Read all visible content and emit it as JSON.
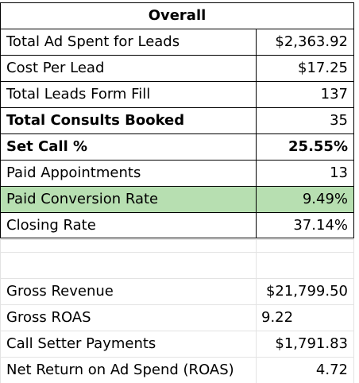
{
  "header": {
    "title": "Overall"
  },
  "rows": [
    {
      "label": "Total Ad Spent for Leads",
      "value": "$2,363.92"
    },
    {
      "label": "Cost Per Lead",
      "value": "$17.25"
    },
    {
      "label": "Total Leads Form Fill",
      "value": "137"
    },
    {
      "label": "Total Consults Booked",
      "value": "35"
    },
    {
      "label": "Set Call %",
      "value": "25.55%"
    },
    {
      "label": "Paid Appointments",
      "value": "13"
    },
    {
      "label": "Paid Conversion Rate",
      "value": "9.49%"
    },
    {
      "label": "Closing Rate",
      "value": "37.14%"
    }
  ],
  "lower_rows": [
    {
      "label": "Gross Revenue",
      "value": "$21,799.50"
    },
    {
      "label": "Gross ROAS",
      "value": "9.22"
    },
    {
      "label": "Call Setter Payments",
      "value": "$1,791.83"
    },
    {
      "label": "Net Return on Ad Spend (ROAS)",
      "value": "4.72"
    }
  ],
  "colors": {
    "highlight_row": "#b7dfb1",
    "border": "#000000",
    "gridline": "#e3e3e3"
  }
}
